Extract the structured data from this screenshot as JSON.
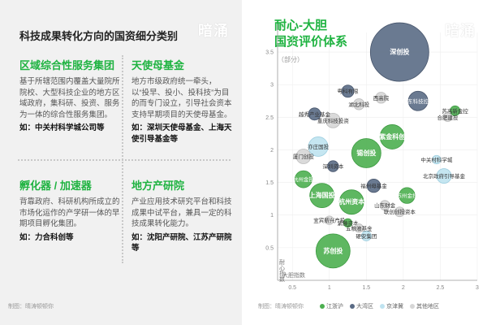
{
  "left": {
    "title": "科技成果转化方向的国资细分类别",
    "watermark": "暗涌",
    "credit": "制图：晴涛顿顿你",
    "cards": [
      {
        "title": "区域综合性服务集团",
        "desc": "基于所辖范围内覆盖大量院所院校、大型科技企业的地方区域政府，集科研、投资、服务为一体的综合性服务集团。",
        "example": "如：中关村科学城公司等"
      },
      {
        "title": "天使母基金",
        "desc": "地方市级政府统一牵头，以“投早、投小、投科技”为目的而专门设立，引导社会资本支持早期项目的天使母基金。",
        "example": "如：深圳天使母基金、上海天使引导基金等"
      },
      {
        "title": "孵化器 / 加速器",
        "desc": "背靠政府、科研机构所成立的市场化运作的产学研一体的早期项目孵化集团。",
        "example": "如：力合科创等"
      },
      {
        "title": "地方产研院",
        "desc": "产业应用技术研究平台和科技成果中试平台，兼具一定的科技成果转化能力。",
        "example": "如：沈阳产研院、江苏产研院等"
      }
    ]
  },
  "right": {
    "title_line1": "耐心-大胆",
    "title_line2": "国资评价体系",
    "subtitle": "（部分）",
    "watermark": "暗涌",
    "credit": "制图：晴涛顿顿你",
    "y_axis_label": "耐心指数",
    "x_axis_label": "大胆指数",
    "legend": [
      {
        "label": "江浙沪",
        "color": "#4caf50"
      },
      {
        "label": "大湾区",
        "color": "#5a6b85"
      },
      {
        "label": "京津冀",
        "color": "#bfe3f0"
      },
      {
        "label": "其他地区",
        "color": "#d6d6d6"
      }
    ]
  },
  "chart_data": {
    "type": "scatter",
    "subtype": "bubble",
    "x_ticks": [
      "0.5",
      "1",
      "1.5",
      "2",
      "2.5",
      "3"
    ],
    "y_ticks": [
      "0.5",
      "1",
      "1.5",
      "2",
      "2.5",
      "3",
      "3.5"
    ],
    "xlim": [
      0.3,
      3.0
    ],
    "ylim": [
      0.0,
      3.8
    ],
    "xlabel": "大胆指数",
    "ylabel": "耐心指数",
    "points": [
      {
        "name": "深创投",
        "x": 1.95,
        "y": 3.5,
        "size": 48,
        "region": "大湾区"
      },
      {
        "name": "粤科有限",
        "x": 1.25,
        "y": 2.9,
        "size": 10,
        "region": "大湾区"
      },
      {
        "name": "湖北科投",
        "x": 1.4,
        "y": 2.7,
        "size": 9,
        "region": "其他地区"
      },
      {
        "name": "西高院",
        "x": 1.7,
        "y": 2.8,
        "size": 9,
        "region": "其他地区"
      },
      {
        "name": "广东科技控股",
        "x": 2.2,
        "y": 2.75,
        "size": 16,
        "region": "大湾区"
      },
      {
        "name": "苏高新金控",
        "x": 2.7,
        "y": 2.6,
        "size": 8,
        "region": "江浙沪"
      },
      {
        "name": "合肥建投",
        "x": 2.6,
        "y": 2.5,
        "size": 7,
        "region": "其他地区"
      },
      {
        "name": "越秀产业基金",
        "x": 0.8,
        "y": 2.55,
        "size": 10,
        "region": "大湾区"
      },
      {
        "name": "重庆科技投资",
        "x": 1.05,
        "y": 2.45,
        "size": 12,
        "region": "其他地区"
      },
      {
        "name": "紫金科创",
        "x": 1.85,
        "y": 2.2,
        "size": 20,
        "region": "江浙沪"
      },
      {
        "name": "亦庄国投",
        "x": 0.85,
        "y": 2.05,
        "size": 16,
        "region": "京津冀"
      },
      {
        "name": "厦门创投",
        "x": 0.65,
        "y": 1.9,
        "size": 12,
        "region": "其他地区"
      },
      {
        "name": "锡创投",
        "x": 1.5,
        "y": 1.95,
        "size": 24,
        "region": "江浙沪"
      },
      {
        "name": "中关村科学城",
        "x": 2.45,
        "y": 1.85,
        "size": 7,
        "region": "京津冀"
      },
      {
        "name": "深圳资本",
        "x": 1.05,
        "y": 1.75,
        "size": 9,
        "region": "大湾区"
      },
      {
        "name": "北京政府引导基金",
        "x": 2.55,
        "y": 1.6,
        "size": 12,
        "region": "京津冀"
      },
      {
        "name": "杭州金投",
        "x": 0.65,
        "y": 1.55,
        "size": 14,
        "region": "江浙沪"
      },
      {
        "name": "福州母基金",
        "x": 1.6,
        "y": 1.45,
        "size": 11,
        "region": "大湾区"
      },
      {
        "name": "上海国投",
        "x": 0.9,
        "y": 1.3,
        "size": 20,
        "region": "江浙沪"
      },
      {
        "name": "杭州资本",
        "x": 1.3,
        "y": 1.2,
        "size": 20,
        "region": "江浙沪"
      },
      {
        "name": "苏州金控",
        "x": 2.05,
        "y": 1.3,
        "size": 13,
        "region": "江浙沪"
      },
      {
        "name": "山东财金",
        "x": 1.75,
        "y": 1.15,
        "size": 8,
        "region": "其他地区"
      },
      {
        "name": "联创创投资本",
        "x": 1.95,
        "y": 1.05,
        "size": 8,
        "region": "其他地区"
      },
      {
        "name": "宜宾新兴产投",
        "x": 1.0,
        "y": 0.92,
        "size": 7,
        "region": "其他地区"
      },
      {
        "name": "紫藤资本",
        "x": 1.25,
        "y": 0.88,
        "size": 7,
        "region": "江浙沪"
      },
      {
        "name": "五粮液基金",
        "x": 1.4,
        "y": 0.8,
        "size": 7,
        "region": "其他地区"
      },
      {
        "name": "硬安集团",
        "x": 1.5,
        "y": 0.68,
        "size": 8,
        "region": "京津冀"
      },
      {
        "name": "苏创投",
        "x": 1.05,
        "y": 0.45,
        "size": 28,
        "region": "江浙沪"
      }
    ]
  }
}
